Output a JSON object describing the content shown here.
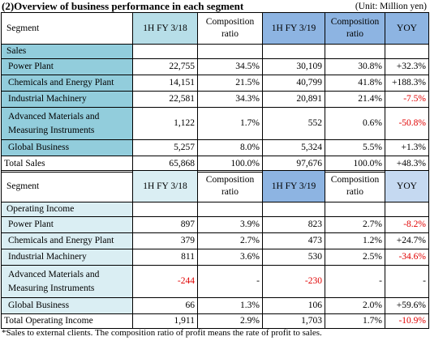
{
  "header": {
    "title": "(2)Overview of business performance in each segment",
    "unit": "(Unit: Million yen)"
  },
  "tables": [
    {
      "header": [
        "Segment",
        "1H FY 3/18",
        "Composition ratio",
        "1H FY 3/19",
        "Composition ratio",
        "YOY"
      ],
      "rows": [
        [
          "Sales"
        ],
        [
          "Power Plant",
          "22,755",
          "34.5%",
          "30,109",
          "30.8%",
          "+32.3%"
        ],
        [
          "Chemicals and Energy Plant",
          "14,151",
          "21.5%",
          "40,799",
          "41.8%",
          "+188.3%"
        ],
        [
          "Industrial Machinery",
          "22,581",
          "34.3%",
          "20,891",
          "21.4%",
          "-7.5%"
        ],
        [
          "Advanced Materials and Measuring Instruments",
          "1,122",
          "1.7%",
          "552",
          "0.6%",
          "-50.8%"
        ],
        [
          "Global Business",
          "5,257",
          "8.0%",
          "5,324",
          "5.5%",
          "+1.3%"
        ],
        [
          "Total Sales",
          "65,868",
          "100.0%",
          "97,676",
          "100.0%",
          "+48.3%"
        ]
      ]
    },
    {
      "header": [
        "Segment",
        "1H FY 3/18",
        "Composition ratio",
        "1H FY 3/19",
        "Composition ratio",
        "YOY"
      ],
      "rows": [
        [
          "Operating Income"
        ],
        [
          "Power Plant",
          "897",
          "3.9%",
          "823",
          "2.7%",
          "-8.2%"
        ],
        [
          "Chemicals and Energy Plant",
          "379",
          "2.7%",
          "473",
          "1.2%",
          "+24.7%"
        ],
        [
          "Industrial Machinery",
          "811",
          "3.6%",
          "530",
          "2.5%",
          "-34.6%"
        ],
        [
          "Advanced Materials and Measuring Instruments",
          "-244",
          "-",
          "-230",
          "-",
          "-"
        ],
        [
          "Global Business",
          "66",
          "1.3%",
          "106",
          "2.0%",
          "+59.6%"
        ],
        [
          "Total Operating Income",
          "1,911",
          "2.9%",
          "1,703",
          "1.7%",
          "-10.9%"
        ]
      ]
    }
  ],
  "footnote": "*Sales to external clients. The composition ratio of profit means the rate of profit to sales."
}
